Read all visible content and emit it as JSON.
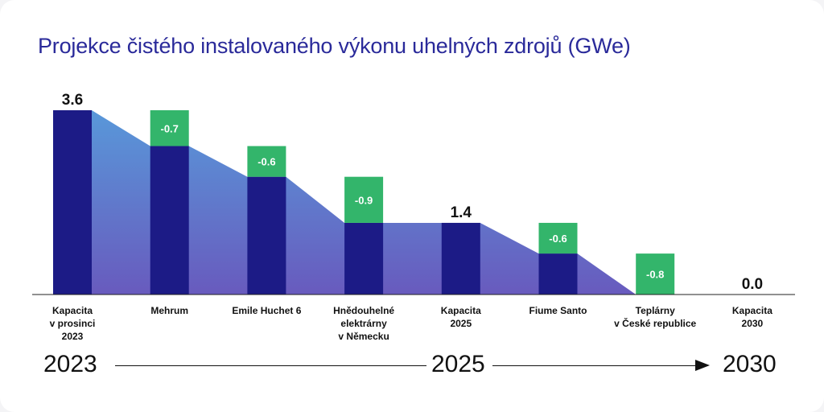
{
  "title": "Projekce čistého instalovaného výkonu uhelných zdrojů (GWe)",
  "colors": {
    "total_bar": "#1c1b86",
    "reduction_bar": "#33b56b",
    "area_top": "#4a8fd6",
    "area_bottom": "#5b4cb8",
    "title": "#2a2a9a"
  },
  "chart_data": {
    "type": "bar",
    "subtype": "waterfall",
    "title": "Projekce čistého instalovaného výkonu uhelných zdrojů (GWe)",
    "unit": "GWe",
    "categories": [
      "Kapacita\nv prosinci\n2023",
      "Mehrum",
      "Emile Huchet 6",
      "Hnědouhelné\nelektrárny\nv Německu",
      "Kapacita\n2025",
      "Fiume Santo",
      "Teplárny\nv České republice",
      "Kapacita\n2030"
    ],
    "steps": [
      {
        "kind": "total",
        "value": 3.6,
        "label": "3.6"
      },
      {
        "kind": "delta",
        "value": -0.7,
        "label": "-0.7"
      },
      {
        "kind": "delta",
        "value": -0.6,
        "label": "-0.6"
      },
      {
        "kind": "delta",
        "value": -0.9,
        "label": "-0.9"
      },
      {
        "kind": "total",
        "value": 1.4,
        "label": "1.4"
      },
      {
        "kind": "delta",
        "value": -0.6,
        "label": "-0.6"
      },
      {
        "kind": "delta",
        "value": -0.8,
        "label": "-0.8"
      },
      {
        "kind": "total",
        "value": 0.0,
        "label": "0.0"
      }
    ],
    "ylim": [
      0,
      3.6
    ],
    "grid": false,
    "legend": "none"
  },
  "timeline": {
    "start": "2023",
    "middle": "2025",
    "end": "2030"
  }
}
